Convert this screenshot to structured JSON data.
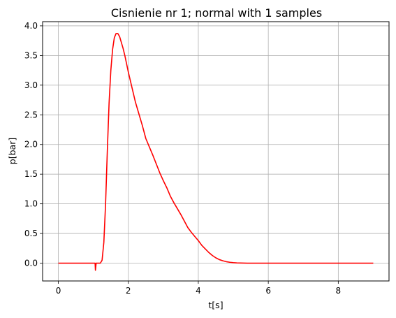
{
  "chart_data": {
    "type": "line",
    "title": "Cisnienie nr 1; normal with 1 samples",
    "xlabel": "t[s]",
    "ylabel": "p[bar]",
    "xlim": [
      -0.45,
      9.45
    ],
    "ylim": [
      -0.3,
      4.07
    ],
    "xticks": [
      0,
      2,
      4,
      6,
      8
    ],
    "xtick_labels": [
      "0",
      "2",
      "4",
      "6",
      "8"
    ],
    "yticks": [
      0.0,
      0.5,
      1.0,
      1.5,
      2.0,
      2.5,
      3.0,
      3.5,
      4.0
    ],
    "ytick_labels": [
      "0.0",
      "0.5",
      "1.0",
      "1.5",
      "2.0",
      "2.5",
      "3.0",
      "3.5",
      "4.0"
    ],
    "grid": true,
    "series": [
      {
        "color": "#ff0000",
        "x": [
          0.0,
          1.0,
          1.05,
          1.06,
          1.08,
          1.1,
          1.2,
          1.25,
          1.3,
          1.35,
          1.4,
          1.45,
          1.5,
          1.55,
          1.6,
          1.65,
          1.7,
          1.75,
          1.8,
          1.85,
          1.9,
          2.0,
          2.1,
          2.2,
          2.3,
          2.4,
          2.5,
          2.6,
          2.7,
          2.8,
          2.9,
          3.0,
          3.1,
          3.2,
          3.3,
          3.4,
          3.5,
          3.6,
          3.7,
          3.8,
          3.9,
          4.0,
          4.1,
          4.2,
          4.3,
          4.4,
          4.5,
          4.6,
          4.7,
          4.8,
          4.9,
          5.0,
          5.1,
          5.2,
          5.3,
          5.4,
          5.5,
          6.0,
          7.0,
          8.0,
          9.0
        ],
        "y": [
          0.0,
          0.0,
          0.0,
          -0.12,
          0.0,
          0.0,
          0.0,
          0.05,
          0.35,
          1.0,
          1.9,
          2.7,
          3.25,
          3.6,
          3.8,
          3.87,
          3.87,
          3.82,
          3.72,
          3.62,
          3.5,
          3.22,
          2.97,
          2.72,
          2.52,
          2.32,
          2.1,
          1.96,
          1.82,
          1.67,
          1.52,
          1.39,
          1.27,
          1.13,
          1.02,
          0.92,
          0.82,
          0.71,
          0.6,
          0.52,
          0.45,
          0.38,
          0.3,
          0.24,
          0.18,
          0.13,
          0.09,
          0.06,
          0.04,
          0.025,
          0.015,
          0.008,
          0.004,
          0.002,
          0.001,
          0.0,
          0.0,
          0.0,
          0.0,
          0.0,
          0.0
        ]
      }
    ]
  }
}
